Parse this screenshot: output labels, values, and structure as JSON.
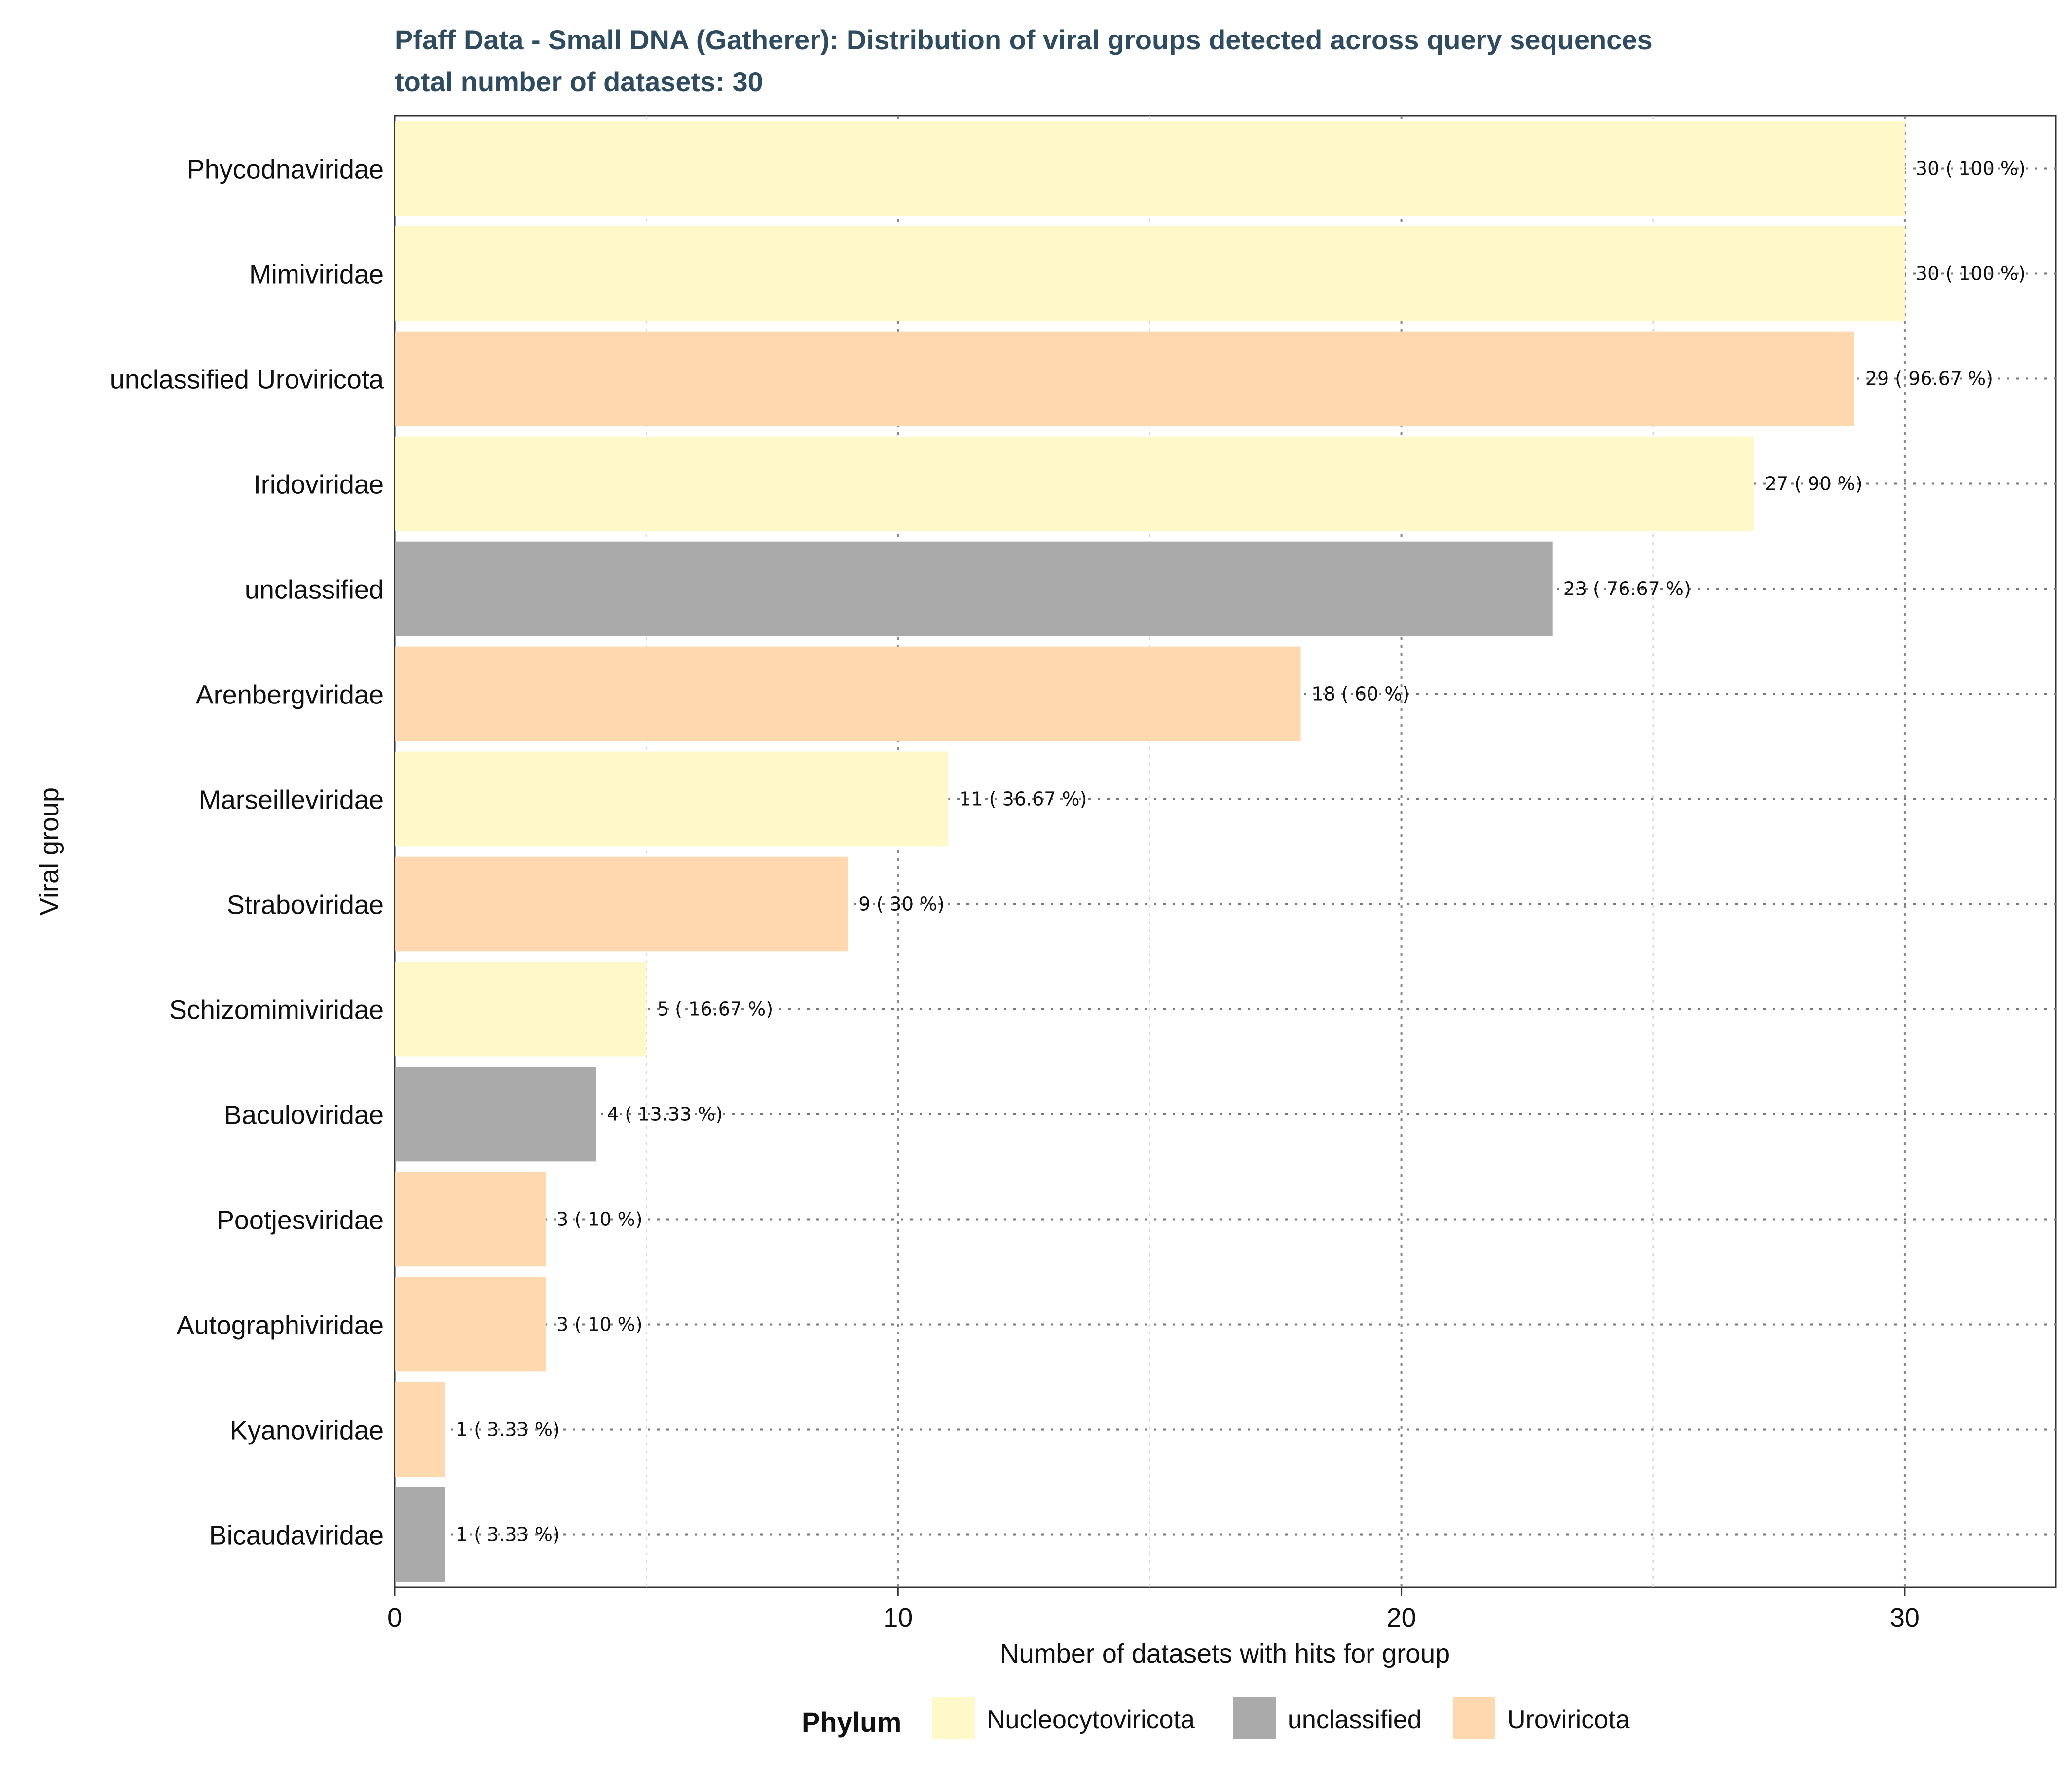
{
  "chart_data": {
    "type": "bar",
    "orientation": "horizontal",
    "title": "Pfaff Data - Small DNA (Gatherer): Distribution of viral groups detected across query sequences",
    "subtitle": "total number of datasets: 30",
    "xlabel": "Number of datasets with hits for group",
    "ylabel": "Viral group",
    "xlim": [
      0,
      33
    ],
    "xticks": [
      0,
      10,
      20,
      30
    ],
    "grid": true,
    "legend": {
      "title": "Phylum",
      "placement": "bottom",
      "entries": [
        {
          "name": "Nucleocytoviricota",
          "color": "#FFF8C8"
        },
        {
          "name": "unclassified",
          "color": "#AAAAAA"
        },
        {
          "name": "Uroviricota",
          "color": "#FFD8B0"
        }
      ]
    },
    "categories": [
      "Phycodnaviridae",
      "Mimiviridae",
      "unclassified Uroviricota",
      "Iridoviridae",
      "unclassified",
      "Arenbergviridae",
      "Marseilleviridae",
      "Straboviridae",
      "Schizomimiviridae",
      "Baculoviridae",
      "Pootjesviridae",
      "Autographiviridae",
      "Kyanoviridae",
      "Bicaudaviridae"
    ],
    "values": [
      30,
      30,
      29,
      27,
      23,
      18,
      11,
      9,
      5,
      4,
      3,
      3,
      1,
      1
    ],
    "phylum": [
      "Nucleocytoviricota",
      "Nucleocytoviricota",
      "Uroviricota",
      "Nucleocytoviricota",
      "unclassified",
      "Uroviricota",
      "Nucleocytoviricota",
      "Uroviricota",
      "Nucleocytoviricota",
      "unclassified",
      "Uroviricota",
      "Uroviricota",
      "Uroviricota",
      "unclassified"
    ],
    "data_labels": [
      "30 ( 100 %)",
      "30 ( 100 %)",
      "29 ( 96.67 %)",
      "27 ( 90 %)",
      "23 ( 76.67 %)",
      "18 ( 60 %)",
      "11 ( 36.67 %)",
      "9 ( 30 %)",
      "5 ( 16.67 %)",
      "4 ( 13.33 %)",
      "3 ( 10 %)",
      "3 ( 10 %)",
      "1 ( 3.33 %)",
      "1 ( 3.33 %)"
    ]
  }
}
